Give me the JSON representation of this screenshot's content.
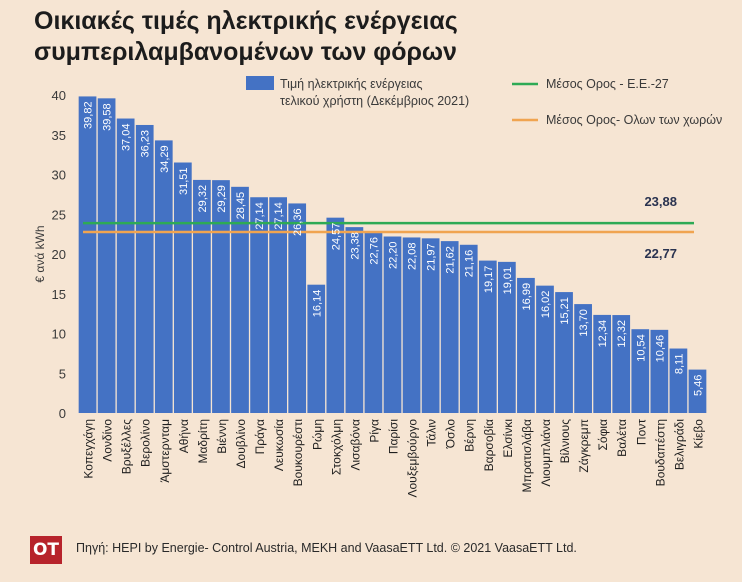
{
  "title": {
    "line1": "Οικιακές τιμές ηλεκτρικής ενέργειας",
    "line2": "συμπεριλαμβανομένων των φόρων"
  },
  "footer": {
    "logo_text": "ΟΤ",
    "source": "Πηγή: HEPI by Energie- Control Austria, MEKH and VaasaETT Ltd. © 2021 VaasaETT Ltd."
  },
  "colors": {
    "bar": "#4472c4",
    "bar_light": "#5b8bd6",
    "eu_line": "#2eaa55",
    "all_line": "#f0a450",
    "background": "#f6e5d3"
  },
  "chart_data": {
    "type": "bar",
    "ylabel": "€ ανά kWh",
    "ylim": [
      0,
      40
    ],
    "yticks": [
      0,
      5,
      10,
      15,
      20,
      25,
      30,
      35,
      40
    ],
    "grid": false,
    "legend_position": "top",
    "categories": [
      "Κοπεγχάγη",
      "Λονδίνο",
      "Βρυξέλλες",
      "Βερολίνο",
      "Άμστερνταμ",
      "Αθήνα",
      "Μαδρίτη",
      "Βιέννη",
      "Δουβλίνο",
      "Πράγα",
      "Λευκωσία",
      "Βουκουρέστι",
      "Ρώμη",
      "Στοκχόλμη",
      "Λισαβόνα",
      "Ρίγα",
      "Παρίσι",
      "Λουξεμβούργο",
      "Τάλιν",
      "Όσλο",
      "Βέρνη",
      "Βαρσοβία",
      "Ελσίνκι",
      "Μπρατισλάβα",
      "Λιουμπλιάνα",
      "Βίλνιους",
      "Ζάγκρεμπ",
      "Σόφια",
      "Βαλέτα",
      "Ποντ",
      "Βουδαπέστη",
      "Βελιγράδι",
      "Κίεβο"
    ],
    "series": [
      {
        "name": "Τιμή ηλεκτρικής ενέργειας τελικού χρήστη (Δεκέμβριος 2021)",
        "name_lines": [
          "Τιμή ηλεκτρικής ενέργειας",
          "τελικού χρήστη (Δεκέμβριος 2021)"
        ],
        "values": [
          39.82,
          39.58,
          37.04,
          36.23,
          34.29,
          31.51,
          29.32,
          29.29,
          28.45,
          27.14,
          27.14,
          26.36,
          16.14,
          24.57,
          23.38,
          22.76,
          22.2,
          22.08,
          21.97,
          21.62,
          21.16,
          19.17,
          19.01,
          16.99,
          16.02,
          15.21,
          13.7,
          12.34,
          12.32,
          10.54,
          10.46,
          8.11,
          5.46
        ],
        "labels": [
          "39,82",
          "39,58",
          "37,04",
          "36,23",
          "34,29",
          "31,51",
          "29,32",
          "29,29",
          "28,45",
          "27,14",
          "27,14",
          "26,36",
          "16,14",
          "24,57",
          "23,38",
          "22,76",
          "22,20",
          "22,08",
          "21,97",
          "21,62",
          "21,16",
          "19,17",
          "19,01",
          "16,99",
          "16,02",
          "15,21",
          "13,70",
          "12,34",
          "12,32",
          "10,54",
          "10,46",
          "8,11",
          "5,46"
        ]
      }
    ],
    "reference_lines": [
      {
        "name": "Μέσος Ορος - Ε.Ε.-27",
        "value": 23.88,
        "label": "23,88"
      },
      {
        "name": "Μέσος Ορος- Ολων των χωρών",
        "value": 22.77,
        "label": "22,77"
      }
    ]
  }
}
